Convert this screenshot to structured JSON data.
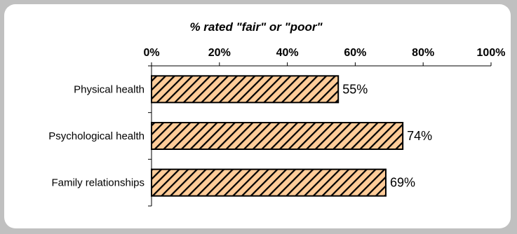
{
  "chart_data": {
    "type": "bar",
    "orientation": "horizontal",
    "title": "% rated \"fair\" or \"poor\"",
    "categories": [
      "Physical health",
      "Psychological health",
      "Family relationships"
    ],
    "values": [
      55,
      74,
      69
    ],
    "value_labels": [
      "55%",
      "74%",
      "69%"
    ],
    "xlim": [
      0,
      100
    ],
    "xticks": [
      0,
      20,
      40,
      60,
      80,
      100
    ],
    "xtick_labels": [
      "0%",
      "20%",
      "40%",
      "60%",
      "80%",
      "100%"
    ],
    "x_axis_position": "top",
    "grid": false,
    "legend": "none",
    "colors": {
      "bar_fill": "#ffcc99",
      "bar_hatch": "#000000",
      "bar_border": "#000000",
      "background": "#c0c0c0",
      "panel": "#ffffff"
    },
    "bar_pattern": "diagonal-hatch"
  }
}
